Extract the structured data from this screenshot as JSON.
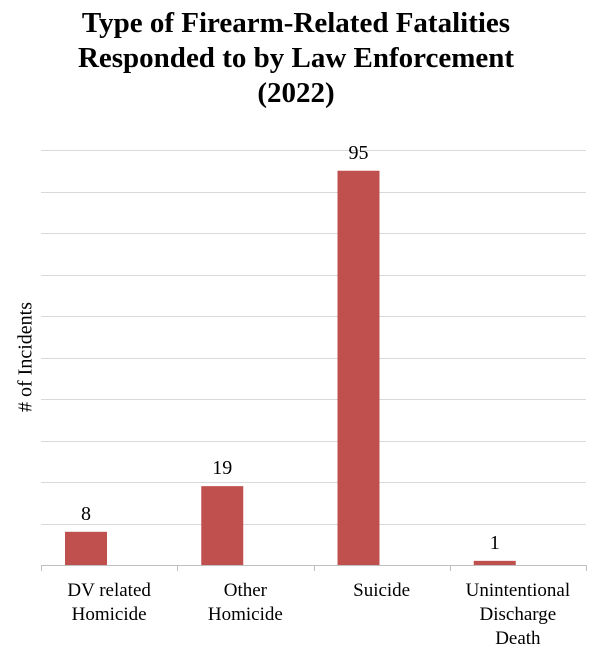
{
  "chart_data": {
    "type": "bar",
    "title_lines": [
      "Type of Firearm-Related Fatalities",
      "Responded to by Law Enforcement",
      "(2022)"
    ],
    "xlabel": "",
    "ylabel": "# of Incidents",
    "categories": [
      [
        "DV related",
        "Homicide"
      ],
      [
        "Other",
        "Homicide"
      ],
      [
        "Suicide"
      ],
      [
        "Unintentional",
        "Discharge",
        "Death"
      ]
    ],
    "values": [
      8,
      19,
      95,
      1
    ],
    "data_labels": [
      "8",
      "19",
      "95",
      "1"
    ],
    "ylim": [
      0,
      100
    ],
    "grid": true,
    "legend": "none",
    "colors": {
      "bar": "#C0504D",
      "grid": "#D9D9D9",
      "axis": "#BFBFBF"
    }
  }
}
